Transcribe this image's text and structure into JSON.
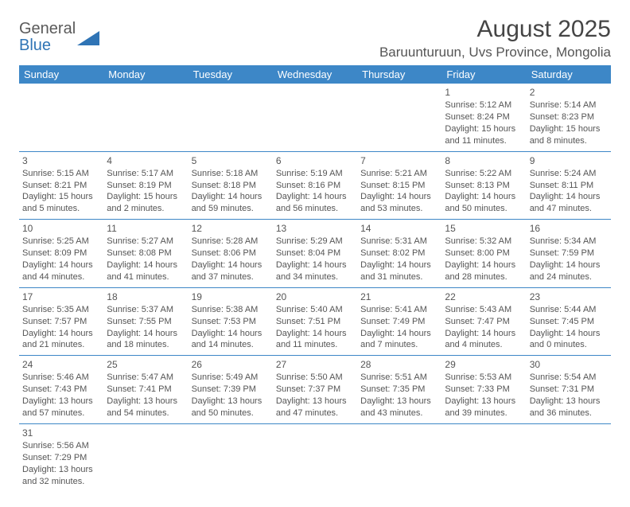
{
  "logo": {
    "textGeneral": "General",
    "textBlue": "Blue"
  },
  "header": {
    "title": "August 2025",
    "location": "Baruunturuun, Uvs Province, Mongolia"
  },
  "colors": {
    "headerBg": "#3d87c7",
    "headerText": "#ffffff",
    "cellBorder": "#3d87c7",
    "bodyText": "#555555",
    "titleText": "#454545"
  },
  "weekdays": [
    "Sunday",
    "Monday",
    "Tuesday",
    "Wednesday",
    "Thursday",
    "Friday",
    "Saturday"
  ],
  "weeks": [
    [
      null,
      null,
      null,
      null,
      null,
      {
        "n": "1",
        "sr": "Sunrise: 5:12 AM",
        "ss": "Sunset: 8:24 PM",
        "dl": "Daylight: 15 hours and 11 minutes."
      },
      {
        "n": "2",
        "sr": "Sunrise: 5:14 AM",
        "ss": "Sunset: 8:23 PM",
        "dl": "Daylight: 15 hours and 8 minutes."
      }
    ],
    [
      {
        "n": "3",
        "sr": "Sunrise: 5:15 AM",
        "ss": "Sunset: 8:21 PM",
        "dl": "Daylight: 15 hours and 5 minutes."
      },
      {
        "n": "4",
        "sr": "Sunrise: 5:17 AM",
        "ss": "Sunset: 8:19 PM",
        "dl": "Daylight: 15 hours and 2 minutes."
      },
      {
        "n": "5",
        "sr": "Sunrise: 5:18 AM",
        "ss": "Sunset: 8:18 PM",
        "dl": "Daylight: 14 hours and 59 minutes."
      },
      {
        "n": "6",
        "sr": "Sunrise: 5:19 AM",
        "ss": "Sunset: 8:16 PM",
        "dl": "Daylight: 14 hours and 56 minutes."
      },
      {
        "n": "7",
        "sr": "Sunrise: 5:21 AM",
        "ss": "Sunset: 8:15 PM",
        "dl": "Daylight: 14 hours and 53 minutes."
      },
      {
        "n": "8",
        "sr": "Sunrise: 5:22 AM",
        "ss": "Sunset: 8:13 PM",
        "dl": "Daylight: 14 hours and 50 minutes."
      },
      {
        "n": "9",
        "sr": "Sunrise: 5:24 AM",
        "ss": "Sunset: 8:11 PM",
        "dl": "Daylight: 14 hours and 47 minutes."
      }
    ],
    [
      {
        "n": "10",
        "sr": "Sunrise: 5:25 AM",
        "ss": "Sunset: 8:09 PM",
        "dl": "Daylight: 14 hours and 44 minutes."
      },
      {
        "n": "11",
        "sr": "Sunrise: 5:27 AM",
        "ss": "Sunset: 8:08 PM",
        "dl": "Daylight: 14 hours and 41 minutes."
      },
      {
        "n": "12",
        "sr": "Sunrise: 5:28 AM",
        "ss": "Sunset: 8:06 PM",
        "dl": "Daylight: 14 hours and 37 minutes."
      },
      {
        "n": "13",
        "sr": "Sunrise: 5:29 AM",
        "ss": "Sunset: 8:04 PM",
        "dl": "Daylight: 14 hours and 34 minutes."
      },
      {
        "n": "14",
        "sr": "Sunrise: 5:31 AM",
        "ss": "Sunset: 8:02 PM",
        "dl": "Daylight: 14 hours and 31 minutes."
      },
      {
        "n": "15",
        "sr": "Sunrise: 5:32 AM",
        "ss": "Sunset: 8:00 PM",
        "dl": "Daylight: 14 hours and 28 minutes."
      },
      {
        "n": "16",
        "sr": "Sunrise: 5:34 AM",
        "ss": "Sunset: 7:59 PM",
        "dl": "Daylight: 14 hours and 24 minutes."
      }
    ],
    [
      {
        "n": "17",
        "sr": "Sunrise: 5:35 AM",
        "ss": "Sunset: 7:57 PM",
        "dl": "Daylight: 14 hours and 21 minutes."
      },
      {
        "n": "18",
        "sr": "Sunrise: 5:37 AM",
        "ss": "Sunset: 7:55 PM",
        "dl": "Daylight: 14 hours and 18 minutes."
      },
      {
        "n": "19",
        "sr": "Sunrise: 5:38 AM",
        "ss": "Sunset: 7:53 PM",
        "dl": "Daylight: 14 hours and 14 minutes."
      },
      {
        "n": "20",
        "sr": "Sunrise: 5:40 AM",
        "ss": "Sunset: 7:51 PM",
        "dl": "Daylight: 14 hours and 11 minutes."
      },
      {
        "n": "21",
        "sr": "Sunrise: 5:41 AM",
        "ss": "Sunset: 7:49 PM",
        "dl": "Daylight: 14 hours and 7 minutes."
      },
      {
        "n": "22",
        "sr": "Sunrise: 5:43 AM",
        "ss": "Sunset: 7:47 PM",
        "dl": "Daylight: 14 hours and 4 minutes."
      },
      {
        "n": "23",
        "sr": "Sunrise: 5:44 AM",
        "ss": "Sunset: 7:45 PM",
        "dl": "Daylight: 14 hours and 0 minutes."
      }
    ],
    [
      {
        "n": "24",
        "sr": "Sunrise: 5:46 AM",
        "ss": "Sunset: 7:43 PM",
        "dl": "Daylight: 13 hours and 57 minutes."
      },
      {
        "n": "25",
        "sr": "Sunrise: 5:47 AM",
        "ss": "Sunset: 7:41 PM",
        "dl": "Daylight: 13 hours and 54 minutes."
      },
      {
        "n": "26",
        "sr": "Sunrise: 5:49 AM",
        "ss": "Sunset: 7:39 PM",
        "dl": "Daylight: 13 hours and 50 minutes."
      },
      {
        "n": "27",
        "sr": "Sunrise: 5:50 AM",
        "ss": "Sunset: 7:37 PM",
        "dl": "Daylight: 13 hours and 47 minutes."
      },
      {
        "n": "28",
        "sr": "Sunrise: 5:51 AM",
        "ss": "Sunset: 7:35 PM",
        "dl": "Daylight: 13 hours and 43 minutes."
      },
      {
        "n": "29",
        "sr": "Sunrise: 5:53 AM",
        "ss": "Sunset: 7:33 PM",
        "dl": "Daylight: 13 hours and 39 minutes."
      },
      {
        "n": "30",
        "sr": "Sunrise: 5:54 AM",
        "ss": "Sunset: 7:31 PM",
        "dl": "Daylight: 13 hours and 36 minutes."
      }
    ],
    [
      {
        "n": "31",
        "sr": "Sunrise: 5:56 AM",
        "ss": "Sunset: 7:29 PM",
        "dl": "Daylight: 13 hours and 32 minutes."
      },
      null,
      null,
      null,
      null,
      null,
      null
    ]
  ]
}
